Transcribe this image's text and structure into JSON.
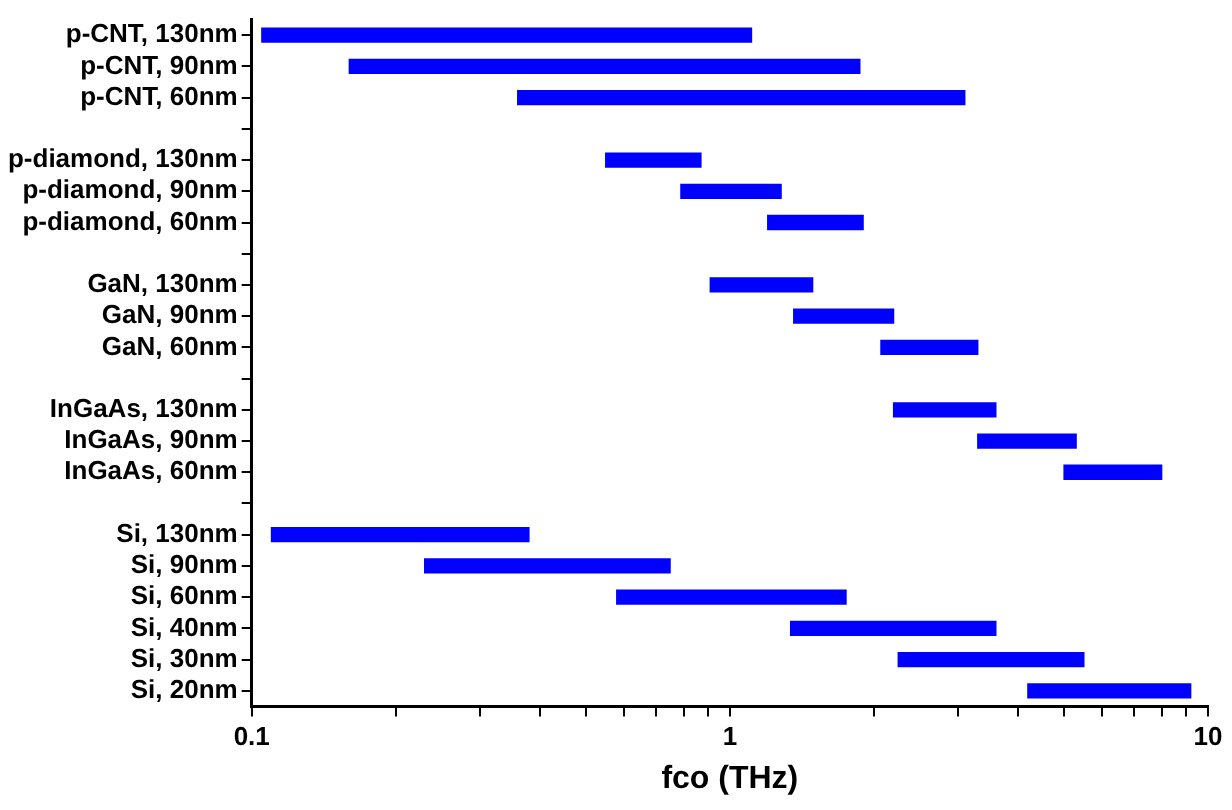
{
  "chart_data": {
    "type": "bar",
    "orientation": "horizontal",
    "log": "x",
    "grid": false,
    "xlabel": "fco (THz)",
    "color": "#0000ff",
    "categories": [
      "p-CNT, 130nm",
      "p-CNT, 90nm",
      "p-CNT, 60nm",
      null,
      "p-diamond, 130nm",
      "p-diamond, 90nm",
      "p-diamond, 60nm",
      null,
      "GaN, 130nm",
      "GaN, 90nm",
      "GaN, 60nm",
      null,
      "InGaAs, 130nm",
      "InGaAs, 90nm",
      "InGaAs, 60nm",
      null,
      "Si, 130nm",
      "Si, 90nm",
      "Si, 60nm",
      "Si, 40nm",
      "Si, 30nm",
      "Si, 20nm"
    ],
    "base": [
      0.105,
      0.16,
      0.36,
      null,
      0.55,
      0.79,
      1.2,
      null,
      0.91,
      1.36,
      2.07,
      null,
      2.2,
      3.3,
      5.0,
      null,
      0.11,
      0.23,
      0.58,
      1.34,
      2.25,
      4.2
    ],
    "values": [
      1.005,
      1.71,
      2.74,
      null,
      0.32,
      0.49,
      0.7,
      null,
      0.58,
      0.84,
      1.23,
      null,
      1.4,
      2.0,
      3.0,
      null,
      0.27,
      0.52,
      1.17,
      2.26,
      3.25,
      5.0
    ],
    "xlim": [
      0.1,
      10
    ],
    "xticks": [
      {
        "value": 0.1,
        "label": "0.1"
      },
      {
        "value": 0.2,
        "label": null
      },
      {
        "value": 0.3,
        "label": null
      },
      {
        "value": 0.4,
        "label": null
      },
      {
        "value": 0.5,
        "label": null
      },
      {
        "value": 0.6,
        "label": null
      },
      {
        "value": 0.7,
        "label": null
      },
      {
        "value": 0.8,
        "label": null
      },
      {
        "value": 0.9,
        "label": null
      },
      1,
      {
        "value": 2,
        "label": null
      },
      {
        "value": 3,
        "label": null
      },
      {
        "value": 4,
        "label": null
      },
      {
        "value": 5,
        "label": null
      },
      {
        "value": 6,
        "label": null
      },
      {
        "value": 7,
        "label": null
      },
      {
        "value": 8,
        "label": null
      },
      {
        "value": 9,
        "label": null
      },
      10
    ]
  }
}
